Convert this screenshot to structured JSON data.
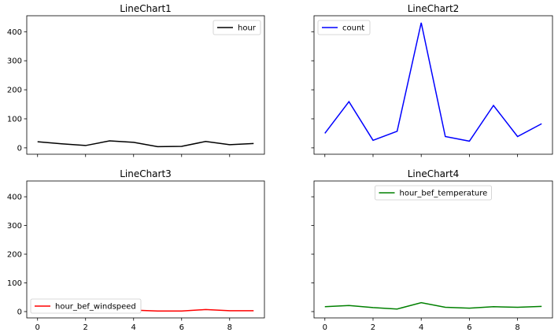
{
  "chart_data": [
    {
      "type": "line",
      "title": "LineChart1",
      "x": [
        0,
        1,
        2,
        3,
        4,
        5,
        6,
        7,
        8,
        9
      ],
      "series": [
        {
          "name": "hour",
          "values": [
            21,
            14,
            8,
            24,
            19,
            4,
            5,
            22,
            11,
            15
          ],
          "color": "#000000"
        }
      ],
      "ylim": [
        -22,
        455
      ],
      "xlim": [
        -0.45,
        9.45
      ],
      "yticks": [
        0,
        100,
        200,
        300,
        400
      ],
      "xticks": [
        0,
        2,
        4,
        6,
        8
      ],
      "show_x_tick_labels": false,
      "show_y_tick_labels": true,
      "legend": "upper right",
      "grid": false
    },
    {
      "type": "line",
      "title": "LineChart2",
      "x": [
        0,
        1,
        2,
        3,
        4,
        5,
        6,
        7,
        8,
        9
      ],
      "series": [
        {
          "name": "count",
          "values": [
            50,
            159,
            26,
            57,
            431,
            39,
            23,
            146,
            39,
            83
          ],
          "color": "#0000ff"
        }
      ],
      "ylim": [
        -22,
        455
      ],
      "xlim": [
        -0.45,
        9.45
      ],
      "yticks": [
        0,
        100,
        200,
        300,
        400
      ],
      "xticks": [
        0,
        2,
        4,
        6,
        8
      ],
      "show_x_tick_labels": false,
      "show_y_tick_labels": false,
      "legend": "upper left",
      "grid": false
    },
    {
      "type": "line",
      "title": "LineChart3",
      "x": [
        0,
        1,
        2,
        3,
        4,
        5,
        6,
        7,
        8,
        9
      ],
      "series": [
        {
          "name": "hour_bef_windspeed",
          "values": [
            2,
            3,
            4,
            3,
            5,
            2,
            2,
            7,
            3,
            3
          ],
          "color": "#ff0000"
        }
      ],
      "ylim": [
        -22,
        455
      ],
      "xlim": [
        -0.45,
        9.45
      ],
      "yticks": [
        0,
        100,
        200,
        300,
        400
      ],
      "xticks": [
        0,
        2,
        4,
        6,
        8
      ],
      "show_x_tick_labels": true,
      "show_y_tick_labels": true,
      "legend": "lower left",
      "grid": false
    },
    {
      "type": "line",
      "title": "LineChart4",
      "x": [
        0,
        1,
        2,
        3,
        4,
        5,
        6,
        7,
        8,
        9
      ],
      "series": [
        {
          "name": "hour_bef_temperature",
          "values": [
            17,
            21,
            14,
            9,
            31,
            15,
            12,
            17,
            15,
            18
          ],
          "color": "#008000"
        }
      ],
      "ylim": [
        -22,
        455
      ],
      "xlim": [
        -0.45,
        9.45
      ],
      "yticks": [
        0,
        100,
        200,
        300,
        400
      ],
      "xticks": [
        0,
        2,
        4,
        6,
        8
      ],
      "show_x_tick_labels": true,
      "show_y_tick_labels": false,
      "legend": "upper center",
      "grid": false
    }
  ]
}
